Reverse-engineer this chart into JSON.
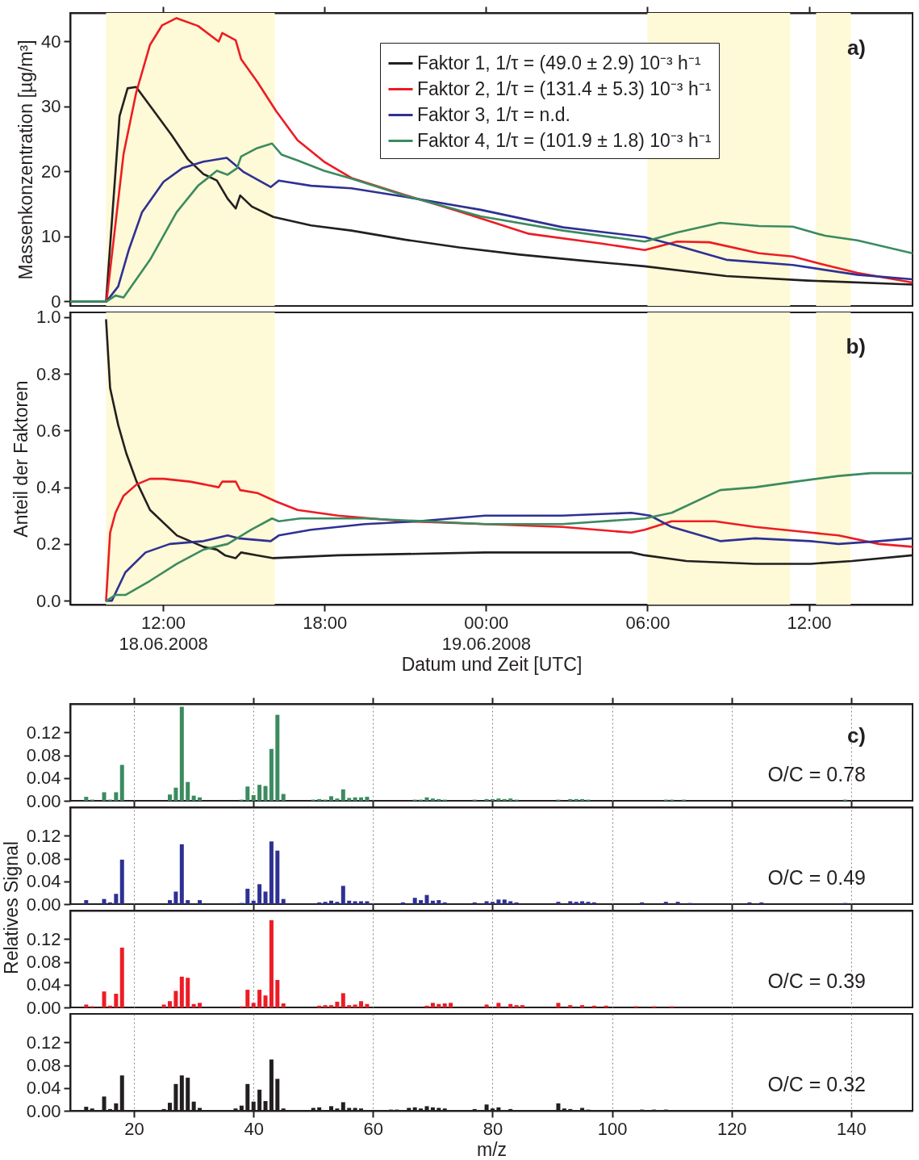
{
  "chart_data": [
    {
      "type": "line",
      "ylabel": "Massenkonzentration [µg/m³]",
      "xlim": [
        "2008-06-18T08:33",
        "2008-06-19T15:51"
      ],
      "ylim": [
        -0.7,
        44.4
      ],
      "tick_labels": "y",
      "legend": "top right",
      "xticks": [
        {
          "value": "2008-06-18T12:00",
          "label": null
        },
        {
          "value": "2008-06-18T18:00",
          "label": null
        },
        {
          "value": "2008-06-19T00:00",
          "label": null
        },
        {
          "value": "2008-06-19T06:00",
          "label": null
        },
        {
          "value": "2008-06-19T12:00",
          "label": null
        }
      ],
      "yticks": [
        0,
        10,
        20,
        30,
        40
      ],
      "bands": [
        {
          "axis": "x",
          "from": "2008-06-18T09:53",
          "to": "2008-06-18T16:09",
          "color": "#fef9d6"
        },
        {
          "axis": "x",
          "from": "2008-06-19T06:00",
          "to": "2008-06-19T11:18",
          "color": "#fef9d6"
        },
        {
          "axis": "x",
          "from": "2008-06-19T12:16",
          "to": "2008-06-19T13:33",
          "color": "#fef9d6"
        }
      ],
      "annotations": [
        "a)"
      ],
      "series": [
        {
          "name": "Faktor 1, 1/τ = (49.0 ± 2.9) 10⁻³ h⁻¹",
          "color": "#231f20",
          "x": [
            "2008-06-18T08:33",
            "2008-06-18T09:53",
            "2008-06-18T10:23",
            "2008-06-18T10:41",
            "2008-06-18T11:00",
            "2008-06-18T11:31",
            "2008-06-18T12:19",
            "2008-06-18T12:55",
            "2008-06-18T13:30",
            "2008-06-18T14:00",
            "2008-06-18T14:24",
            "2008-06-18T14:42",
            "2008-06-18T14:52",
            "2008-06-18T15:18",
            "2008-06-18T16:06",
            "2008-06-18T17:30",
            "2008-06-18T19:00",
            "2008-06-18T20:59",
            "2008-06-18T23:00",
            "2008-06-19T01:15",
            "2008-06-19T03:30",
            "2008-06-19T05:54",
            "2008-06-19T08:56",
            "2008-06-19T11:58",
            "2008-06-19T15:51"
          ],
          "values": [
            0,
            0,
            28.5,
            32.8,
            33.0,
            30.1,
            25.6,
            21.9,
            19.6,
            18.6,
            15.8,
            14.3,
            16.3,
            14.6,
            13.0,
            11.7,
            10.9,
            9.5,
            8.3,
            7.2,
            6.3,
            5.4,
            3.9,
            3.2,
            2.6
          ]
        },
        {
          "name": "Faktor 2, 1/τ = (131.4 ± 5.3) 10⁻³ h⁻¹",
          "color": "#ed1c24",
          "x": [
            "2008-06-18T08:33",
            "2008-06-18T09:54",
            "2008-06-18T10:32",
            "2008-06-18T11:00",
            "2008-06-18T11:31",
            "2008-06-18T11:58",
            "2008-06-18T12:30",
            "2008-06-18T13:18",
            "2008-06-18T14:04",
            "2008-06-18T14:12",
            "2008-06-18T14:42",
            "2008-06-18T14:54",
            "2008-06-18T15:30",
            "2008-06-18T16:12",
            "2008-06-18T17:00",
            "2008-06-18T17:59",
            "2008-06-18T19:00",
            "2008-06-18T20:59",
            "2008-06-18T23:12",
            "2008-06-19T01:36",
            "2008-06-19T04:18",
            "2008-06-19T05:54",
            "2008-06-19T07:06",
            "2008-06-19T08:18",
            "2008-06-19T10:09",
            "2008-06-19T11:24",
            "2008-06-19T12:36",
            "2008-06-19T13:48",
            "2008-06-19T15:51"
          ],
          "values": [
            0,
            0,
            22.7,
            32.1,
            39.5,
            42.5,
            43.6,
            42.4,
            40.0,
            41.3,
            40.2,
            37.3,
            33.8,
            29.3,
            24.8,
            21.5,
            19.0,
            16.4,
            13.6,
            10.4,
            8.9,
            7.9,
            9.2,
            9.1,
            7.4,
            6.9,
            5.6,
            4.4,
            2.9
          ]
        },
        {
          "name": "Faktor 3, 1/τ = n.d.",
          "color": "#2e3192",
          "x": [
            "2008-06-18T08:33",
            "2008-06-18T09:54",
            "2008-06-18T10:20",
            "2008-06-18T10:44",
            "2008-06-18T11:13",
            "2008-06-18T12:01",
            "2008-06-18T12:43",
            "2008-06-18T13:30",
            "2008-06-18T14:22",
            "2008-06-18T15:00",
            "2008-06-18T16:00",
            "2008-06-18T16:18",
            "2008-06-18T17:30",
            "2008-06-18T19:00",
            "2008-06-18T20:59",
            "2008-06-18T23:48",
            "2008-06-19T02:52",
            "2008-06-19T05:54",
            "2008-06-19T07:06",
            "2008-06-19T08:56",
            "2008-06-19T11:24",
            "2008-06-19T13:48",
            "2008-06-19T15:51"
          ],
          "values": [
            0,
            0,
            2.3,
            8.0,
            13.7,
            18.4,
            20.5,
            21.5,
            22.1,
            19.9,
            17.6,
            18.6,
            17.8,
            17.4,
            16.1,
            14.1,
            11.4,
            9.9,
            8.6,
            6.4,
            5.6,
            4.1,
            3.4
          ]
        },
        {
          "name": "Faktor 4, 1/τ = (101.9 ± 1.8) 10⁻³ h⁻¹",
          "color": "#3b8b5f",
          "x": [
            "2008-06-18T08:33",
            "2008-06-18T09:54",
            "2008-06-18T10:14",
            "2008-06-18T10:32",
            "2008-06-18T11:31",
            "2008-06-18T12:30",
            "2008-06-18T13:18",
            "2008-06-18T14:00",
            "2008-06-18T14:24",
            "2008-06-18T14:45",
            "2008-06-18T14:54",
            "2008-06-18T15:30",
            "2008-06-18T16:03",
            "2008-06-18T16:24",
            "2008-06-18T17:00",
            "2008-06-18T17:59",
            "2008-06-18T19:00",
            "2008-06-18T20:59",
            "2008-06-18T23:48",
            "2008-06-19T02:52",
            "2008-06-19T05:54",
            "2008-06-19T07:06",
            "2008-06-19T08:42",
            "2008-06-19T10:09",
            "2008-06-19T11:24",
            "2008-06-19T12:36",
            "2008-06-19T13:48",
            "2008-06-19T15:51"
          ],
          "values": [
            0,
            0,
            0.9,
            0.6,
            6.4,
            13.7,
            17.8,
            20.1,
            19.5,
            20.5,
            22.3,
            23.6,
            24.3,
            22.6,
            21.7,
            20.1,
            18.9,
            16.3,
            13.1,
            10.9,
            9.2,
            10.6,
            12.1,
            11.6,
            11.5,
            10.1,
            9.4,
            7.4
          ]
        }
      ]
    },
    {
      "type": "line",
      "xlabel": "Datum und Zeit [UTC]",
      "ylabel": "Anteil der Faktoren",
      "xlim": [
        "2008-06-18T08:33",
        "2008-06-19T15:51"
      ],
      "ylim": [
        -0.014,
        1.017
      ],
      "xticks": [
        {
          "value": "2008-06-18T12:00",
          "label": "12:00\n18.06.2008"
        },
        {
          "value": "2008-06-18T18:00",
          "label": "18:00"
        },
        {
          "value": "2008-06-19T00:00",
          "label": "00:00\n19.06.2008"
        },
        {
          "value": "2008-06-19T06:00",
          "label": "06:00"
        },
        {
          "value": "2008-06-19T12:00",
          "label": "12:00"
        }
      ],
      "yticks": [
        {
          "value": 0,
          "label": "0.0"
        },
        {
          "value": 0.2,
          "label": "0.2"
        },
        {
          "value": 0.4,
          "label": "0.4"
        },
        {
          "value": 0.6,
          "label": "0.6"
        },
        {
          "value": 0.8,
          "label": "0.8"
        },
        {
          "value": 1,
          "label": "1.0"
        }
      ],
      "bands": [
        {
          "axis": "x",
          "from": "2008-06-18T09:53",
          "to": "2008-06-18T16:09",
          "color": "#fef9d6"
        },
        {
          "axis": "x",
          "from": "2008-06-19T06:00",
          "to": "2008-06-19T11:18",
          "color": "#fef9d6"
        },
        {
          "axis": "x",
          "from": "2008-06-19T12:16",
          "to": "2008-06-19T13:33",
          "color": "#fef9d6"
        }
      ],
      "annotations": [
        "b)"
      ],
      "series": [
        {
          "color": "#231f20",
          "x": [
            "2008-06-18T09:53",
            "2008-06-18T10:02",
            "2008-06-18T10:20",
            "2008-06-18T10:38",
            "2008-06-18T11:01",
            "2008-06-18T11:31",
            "2008-06-18T12:31",
            "2008-06-18T13:30",
            "2008-06-18T14:00",
            "2008-06-18T14:18",
            "2008-06-18T14:42",
            "2008-06-18T14:54",
            "2008-06-18T15:30",
            "2008-06-18T16:06",
            "2008-06-18T18:30",
            "2008-06-18T23:58",
            "2008-06-19T05:24",
            "2008-06-19T05:54",
            "2008-06-19T07:27",
            "2008-06-19T10:00",
            "2008-06-19T12:04",
            "2008-06-19T13:36",
            "2008-06-19T15:51"
          ],
          "values": [
            0.99,
            0.75,
            0.62,
            0.52,
            0.42,
            0.32,
            0.23,
            0.19,
            0.18,
            0.16,
            0.15,
            0.17,
            0.16,
            0.15,
            0.16,
            0.17,
            0.17,
            0.16,
            0.14,
            0.13,
            0.13,
            0.14,
            0.16
          ]
        },
        {
          "color": "#ed1c24",
          "x": [
            "2008-06-18T09:53",
            "2008-06-18T10:02",
            "2008-06-18T10:14",
            "2008-06-18T10:32",
            "2008-06-18T11:01",
            "2008-06-18T11:31",
            "2008-06-18T12:01",
            "2008-06-18T13:00",
            "2008-06-18T14:04",
            "2008-06-18T14:12",
            "2008-06-18T14:42",
            "2008-06-18T14:52",
            "2008-06-18T15:30",
            "2008-06-18T16:12",
            "2008-06-18T17:00",
            "2008-06-18T18:30",
            "2008-06-18T20:59",
            "2008-06-18T23:58",
            "2008-06-19T02:50",
            "2008-06-19T05:24",
            "2008-06-19T05:54",
            "2008-06-19T06:54",
            "2008-06-19T08:30",
            "2008-06-19T10:00",
            "2008-06-19T12:04",
            "2008-06-19T13:06",
            "2008-06-19T14:36",
            "2008-06-19T15:51"
          ],
          "values": [
            0.0,
            0.24,
            0.31,
            0.37,
            0.41,
            0.43,
            0.43,
            0.42,
            0.4,
            0.42,
            0.42,
            0.39,
            0.38,
            0.35,
            0.32,
            0.3,
            0.28,
            0.27,
            0.26,
            0.24,
            0.25,
            0.28,
            0.28,
            0.26,
            0.24,
            0.23,
            0.2,
            0.19
          ]
        },
        {
          "color": "#2e3192",
          "x": [
            "2008-06-18T09:54",
            "2008-06-18T10:06",
            "2008-06-18T10:36",
            "2008-06-18T11:21",
            "2008-06-18T12:15",
            "2008-06-18T13:30",
            "2008-06-18T14:24",
            "2008-06-18T14:48",
            "2008-06-18T16:00",
            "2008-06-18T16:18",
            "2008-06-18T17:30",
            "2008-06-18T19:30",
            "2008-06-18T21:28",
            "2008-06-18T23:58",
            "2008-06-19T02:50",
            "2008-06-19T05:24",
            "2008-06-19T06:06",
            "2008-06-19T06:54",
            "2008-06-19T08:42",
            "2008-06-19T10:00",
            "2008-06-19T12:04",
            "2008-06-19T13:06",
            "2008-06-19T14:36",
            "2008-06-19T15:51"
          ],
          "values": [
            0.0,
            0.0,
            0.1,
            0.17,
            0.2,
            0.21,
            0.23,
            0.22,
            0.21,
            0.23,
            0.25,
            0.27,
            0.28,
            0.3,
            0.3,
            0.31,
            0.3,
            0.26,
            0.21,
            0.22,
            0.21,
            0.2,
            0.21,
            0.22
          ]
        },
        {
          "color": "#3b8b5f",
          "x": [
            "2008-06-18T09:54",
            "2008-06-18T10:14",
            "2008-06-18T10:36",
            "2008-06-18T11:31",
            "2008-06-18T12:31",
            "2008-06-18T13:30",
            "2008-06-18T14:24",
            "2008-06-18T15:16",
            "2008-06-18T16:03",
            "2008-06-18T16:18",
            "2008-06-18T17:06",
            "2008-06-18T19:30",
            "2008-06-18T23:58",
            "2008-06-19T02:50",
            "2008-06-19T05:54",
            "2008-06-19T06:54",
            "2008-06-19T08:42",
            "2008-06-19T10:00",
            "2008-06-19T11:30",
            "2008-06-19T13:06",
            "2008-06-19T14:18",
            "2008-06-19T15:51"
          ],
          "values": [
            0.0,
            0.02,
            0.02,
            0.07,
            0.13,
            0.18,
            0.2,
            0.25,
            0.29,
            0.28,
            0.29,
            0.29,
            0.27,
            0.27,
            0.29,
            0.31,
            0.39,
            0.4,
            0.42,
            0.44,
            0.45,
            0.45
          ]
        }
      ]
    },
    {
      "type": "bar",
      "xlim": [
        10,
        149.6
      ],
      "ylim": [
        0,
        0.17
      ],
      "xticks": [
        20,
        40,
        60,
        80,
        100,
        120,
        140
      ],
      "yticks": [
        {
          "value": 0,
          "label": "0.00"
        },
        {
          "value": 0.04,
          "label": "0.04"
        },
        {
          "value": 0.08,
          "label": "0.08"
        },
        {
          "value": 0.12,
          "label": "0.12"
        }
      ],
      "grid": "x",
      "tick_labels": "y",
      "annotations": [
        "c)",
        "O/C = 0.78"
      ],
      "color": "#3b8b5f",
      "x": [
        12,
        13,
        15,
        16,
        17,
        18,
        26,
        27,
        28,
        29,
        30,
        31,
        38,
        39,
        40,
        41,
        42,
        43,
        44,
        45,
        50,
        51,
        52,
        53,
        54,
        55,
        56,
        57,
        58,
        59,
        67,
        68,
        69,
        70,
        71,
        72,
        77,
        79,
        80,
        81,
        82,
        83,
        84,
        91,
        93,
        94,
        95,
        96,
        109,
        110,
        112,
        139
      ],
      "values": [
        0.007,
        0.002,
        0.015,
        0.002,
        0.015,
        0.063,
        0.011,
        0.023,
        0.165,
        0.033,
        0.009,
        0.006,
        0.002,
        0.025,
        0.01,
        0.028,
        0.026,
        0.091,
        0.151,
        0.012,
        0.002,
        0.003,
        0.002,
        0.008,
        0.004,
        0.02,
        0.005,
        0.006,
        0.006,
        0.007,
        0.002,
        0.002,
        0.006,
        0.004,
        0.003,
        0.002,
        0.002,
        0.003,
        0.003,
        0.004,
        0.003,
        0.004,
        0.002,
        0.002,
        0.003,
        0.003,
        0.003,
        0.002,
        0.002,
        0.002,
        0.002,
        0.002
      ]
    },
    {
      "type": "bar",
      "ylabel": "Relatives Signal",
      "xlim": [
        10,
        149.6
      ],
      "ylim": [
        0,
        0.17
      ],
      "xticks": [
        20,
        40,
        60,
        80,
        100,
        120,
        140
      ],
      "yticks": [
        {
          "value": 0,
          "label": "0.00"
        },
        {
          "value": 0.04,
          "label": "0.04"
        },
        {
          "value": 0.08,
          "label": "0.08"
        },
        {
          "value": 0.12,
          "label": "0.12"
        }
      ],
      "grid": "x",
      "tick_labels": "y",
      "annotations": [
        "O/C = 0.49"
      ],
      "color": "#2e3192",
      "x": [
        12,
        15,
        16,
        17,
        18,
        26,
        27,
        28,
        29,
        31,
        38,
        39,
        40,
        41,
        42,
        43,
        44,
        45,
        51,
        52,
        53,
        54,
        55,
        56,
        57,
        58,
        59,
        65,
        67,
        68,
        69,
        70,
        71,
        72,
        77,
        79,
        80,
        81,
        82,
        83,
        84,
        91,
        93,
        94,
        95,
        96,
        97,
        105,
        109,
        111,
        113,
        123,
        125,
        139
      ],
      "values": [
        0.007,
        0.009,
        0.003,
        0.018,
        0.078,
        0.007,
        0.022,
        0.105,
        0.007,
        0.007,
        0.002,
        0.027,
        0.006,
        0.035,
        0.022,
        0.11,
        0.094,
        0.009,
        0.003,
        0.004,
        0.006,
        0.004,
        0.032,
        0.006,
        0.005,
        0.005,
        0.005,
        0.003,
        0.011,
        0.007,
        0.016,
        0.006,
        0.007,
        0.003,
        0.003,
        0.005,
        0.004,
        0.008,
        0.008,
        0.005,
        0.003,
        0.004,
        0.005,
        0.004,
        0.005,
        0.004,
        0.003,
        0.003,
        0.004,
        0.004,
        0.002,
        0.003,
        0.003,
        0.002
      ]
    },
    {
      "type": "bar",
      "xlim": [
        10,
        149.6
      ],
      "ylim": [
        0,
        0.17
      ],
      "xticks": [
        20,
        40,
        60,
        80,
        100,
        120,
        140
      ],
      "yticks": [
        {
          "value": 0,
          "label": "0.00"
        },
        {
          "value": 0.04,
          "label": "0.04"
        },
        {
          "value": 0.08,
          "label": "0.08"
        },
        {
          "value": 0.12,
          "label": "0.12"
        }
      ],
      "grid": "x",
      "tick_labels": "y",
      "annotations": [
        "O/C = 0.39"
      ],
      "color": "#ed1c24",
      "x": [
        12,
        13,
        15,
        16,
        17,
        18,
        25,
        26,
        27,
        28,
        29,
        30,
        31,
        38,
        39,
        40,
        41,
        42,
        43,
        44,
        45,
        51,
        52,
        53,
        54,
        55,
        56,
        57,
        58,
        59,
        69,
        70,
        71,
        72,
        73,
        79,
        81,
        83,
        84,
        85,
        91,
        93,
        95,
        97,
        99,
        104,
        107,
        110
      ],
      "values": [
        0.005,
        0.002,
        0.028,
        0.003,
        0.024,
        0.105,
        0.005,
        0.011,
        0.029,
        0.054,
        0.052,
        0.006,
        0.008,
        0.002,
        0.031,
        0.008,
        0.031,
        0.021,
        0.153,
        0.048,
        0.007,
        0.003,
        0.004,
        0.004,
        0.01,
        0.025,
        0.004,
        0.005,
        0.011,
        0.006,
        0.003,
        0.008,
        0.006,
        0.007,
        0.008,
        0.005,
        0.008,
        0.006,
        0.004,
        0.004,
        0.008,
        0.004,
        0.004,
        0.003,
        0.003,
        0.002,
        0.002,
        0.002
      ]
    },
    {
      "type": "bar",
      "xlabel": "m/z",
      "xlim": [
        10,
        149.6
      ],
      "ylim": [
        0,
        0.17
      ],
      "xticks": [
        20,
        40,
        60,
        80,
        100,
        120,
        140
      ],
      "yticks": [
        {
          "value": 0,
          "label": "0.00"
        },
        {
          "value": 0.04,
          "label": "0.04"
        },
        {
          "value": 0.08,
          "label": "0.08"
        },
        {
          "value": 0.12,
          "label": "0.12"
        }
      ],
      "grid": "x",
      "annotations": [
        "O/C = 0.32"
      ],
      "color": "#231f20",
      "x": [
        12,
        13,
        15,
        16,
        17,
        18,
        25,
        26,
        27,
        28,
        29,
        30,
        31,
        37,
        38,
        39,
        40,
        41,
        42,
        43,
        44,
        45,
        50,
        51,
        53,
        54,
        55,
        56,
        57,
        58,
        63,
        64,
        66,
        67,
        68,
        69,
        70,
        71,
        72,
        77,
        79,
        80,
        81,
        83,
        91,
        92,
        93,
        95,
        96,
        105,
        107,
        109
      ],
      "values": [
        0.007,
        0.004,
        0.025,
        0.003,
        0.013,
        0.062,
        0.003,
        0.014,
        0.047,
        0.062,
        0.058,
        0.016,
        0.005,
        0.004,
        0.009,
        0.047,
        0.016,
        0.037,
        0.017,
        0.09,
        0.056,
        0.004,
        0.005,
        0.006,
        0.008,
        0.004,
        0.015,
        0.005,
        0.005,
        0.004,
        0.002,
        0.002,
        0.005,
        0.006,
        0.004,
        0.008,
        0.006,
        0.005,
        0.004,
        0.003,
        0.011,
        0.004,
        0.006,
        0.003,
        0.013,
        0.004,
        0.003,
        0.005,
        0.002,
        0.002,
        0.002,
        0.002
      ]
    }
  ]
}
